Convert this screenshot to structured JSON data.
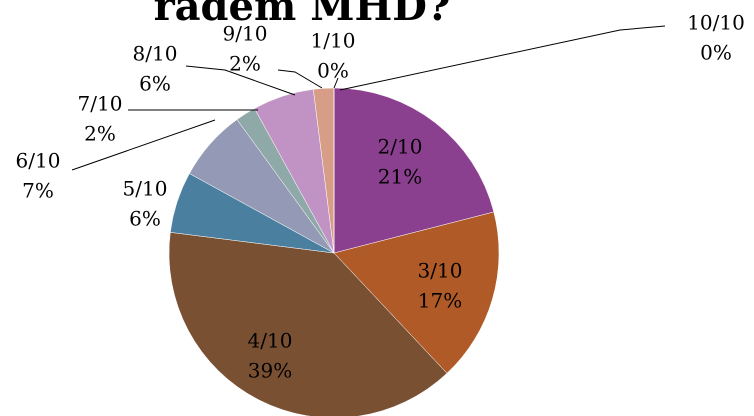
{
  "chart_data": {
    "type": "pie",
    "title": "radem MHD?",
    "categories": [
      "1/10",
      "2/10",
      "3/10",
      "4/10",
      "5/10",
      "6/10",
      "7/10",
      "8/10",
      "9/10",
      "10/10"
    ],
    "values": [
      0,
      21,
      17,
      39,
      6,
      7,
      2,
      6,
      2,
      0
    ],
    "value_labels": [
      "0%",
      "21%",
      "17%",
      "39%",
      "6%",
      "7%",
      "2%",
      "6%",
      "2%",
      "0%"
    ],
    "colors": [
      "#4f81bd",
      "#8b3f8f",
      "#b05a28",
      "#7a5033",
      "#4a7fa0",
      "#9499b5",
      "#8fa8a8",
      "#c193c5",
      "#d89d86",
      "#c0504d"
    ]
  }
}
